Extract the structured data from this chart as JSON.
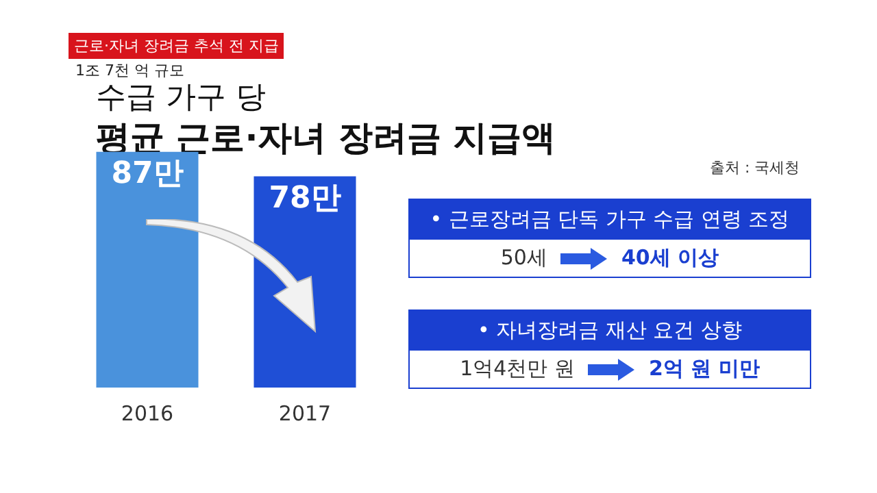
{
  "chart_data": {
    "type": "bar",
    "title": "평균 근로·자녀 장려금 지급액",
    "subtitle": "수급 가구 당",
    "categories": [
      "2016",
      "2017"
    ],
    "values": [
      87,
      78
    ],
    "colors": [
      "#4a92dc",
      "#1f4fd6"
    ],
    "value_labels": [
      "87만",
      "78만"
    ],
    "grid": false,
    "legend": false,
    "tick_labels": "x",
    "annotations": [
      "근로·자녀 장려금 추석 전 지급",
      "1조 7천 억 규모",
      "출처 : 국세청",
      "• 근로장려금 단독 가구 수급 연령 조정",
      "50세",
      "40세 이상",
      "• 자녀장려금 재산 요건 상향",
      "1억4천만 원",
      "2억 원 미만"
    ]
  }
}
